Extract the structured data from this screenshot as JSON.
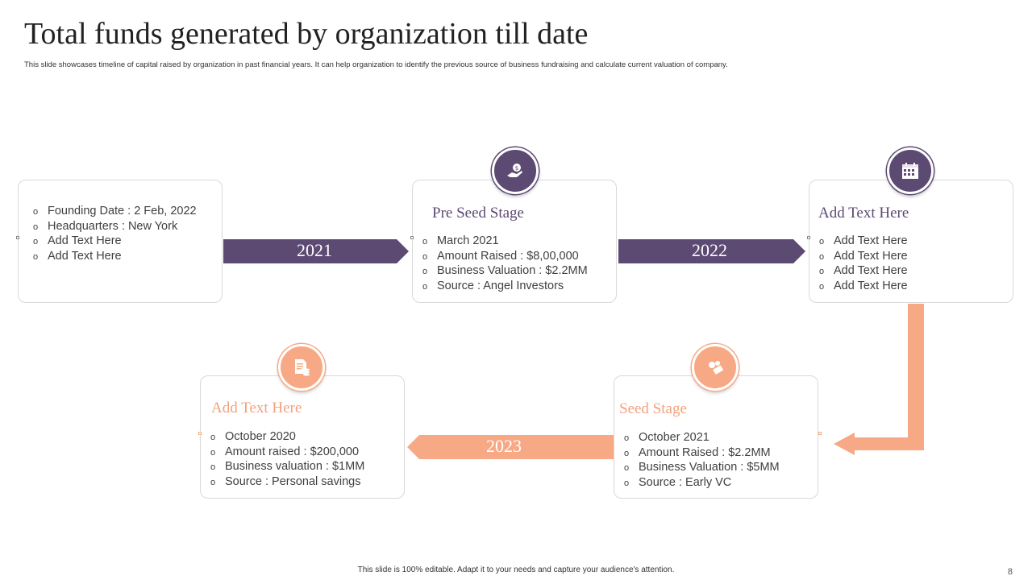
{
  "page": {
    "title": "Total funds generated by organization till date",
    "subtitle": "This slide showcases timeline of capital raised by organization in past financial years. It can help organization to identify the previous source of business fundraising and calculate current valuation of company.",
    "footer": "This slide is 100% editable. Adapt it to your needs and capture your audience's attention.",
    "page_number": "8"
  },
  "colors": {
    "purple": "#5d4a73",
    "peach": "#f7a985"
  },
  "cards": {
    "founding": {
      "items": [
        "Founding Date : 2 Feb, 2022",
        "Headquarters : New York",
        "Add Text Here",
        "Add Text Here"
      ]
    },
    "preseed": {
      "heading": "Pre Seed Stage",
      "icon": "money-hand-icon",
      "items": [
        "March 2021",
        "Amount Raised : $8,00,000",
        "Business Valuation  : $2.2MM",
        "Source : Angel Investors"
      ]
    },
    "addtext_top": {
      "heading": "Add Text Here",
      "icon": "calendar-icon",
      "items": [
        "Add Text Here",
        "Add Text Here",
        "Add Text Here",
        "Add Text Here"
      ]
    },
    "seed": {
      "heading": "Seed Stage",
      "icon": "coins-icon",
      "items": [
        "October 2021",
        "Amount Raised : $2.2MM",
        "Business Valuation  : $5MM",
        "Source : Early VC"
      ]
    },
    "addtext_bottom": {
      "heading": "Add Text Here",
      "icon": "document-coins-icon",
      "items": [
        "October 2020",
        "Amount raised : $200,000",
        "Business valuation  : $1MM",
        "Source : Personal savings"
      ]
    }
  },
  "timeline": {
    "year1": "2021",
    "year2": "2022",
    "year3": "2023"
  },
  "bullet_char": "o"
}
